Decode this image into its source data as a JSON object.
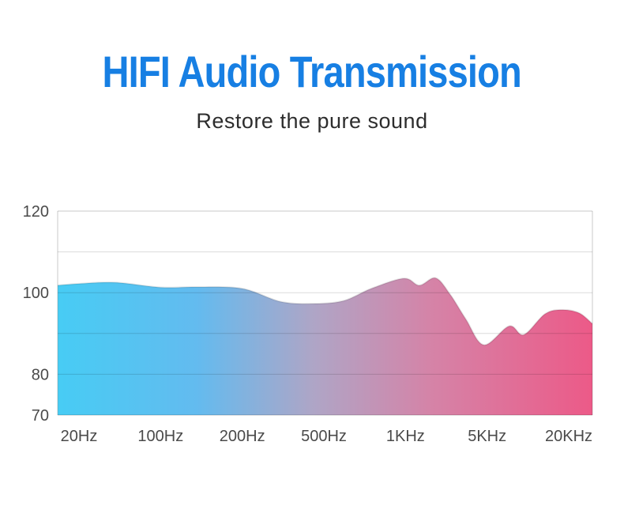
{
  "page": {
    "title": "HIFI Audio Transmission",
    "subtitle": "Restore the pure sound",
    "title_color": "#177fe3",
    "subtitle_color": "#2d2d2d",
    "background": "#ffffff"
  },
  "chart_data": {
    "type": "area",
    "title": "",
    "xlabel": "",
    "ylabel": "",
    "categories": [
      "20Hz",
      "100Hz",
      "200Hz",
      "500Hz",
      "1KHz",
      "5KHz",
      "20KHz"
    ],
    "y_tick_labels": [
      120,
      100,
      80,
      70
    ],
    "gridline_values": [
      110,
      100,
      90,
      80
    ],
    "ylim": [
      70,
      120
    ],
    "grid": true,
    "legend": "none",
    "series": [
      {
        "name": "frequency-response-db",
        "points": [
          {
            "x": -0.26,
            "db": 101.8
          },
          {
            "x": 0.0,
            "db": 102.2
          },
          {
            "x": 0.44,
            "db": 102.5
          },
          {
            "x": 1.0,
            "db": 101.3
          },
          {
            "x": 1.45,
            "db": 101.4
          },
          {
            "x": 2.0,
            "db": 101.0
          },
          {
            "x": 2.47,
            "db": 97.8
          },
          {
            "x": 2.86,
            "db": 97.3
          },
          {
            "x": 3.24,
            "db": 98.0
          },
          {
            "x": 3.58,
            "db": 101.0
          },
          {
            "x": 3.98,
            "db": 103.5
          },
          {
            "x": 4.17,
            "db": 101.8
          },
          {
            "x": 4.37,
            "db": 103.6
          },
          {
            "x": 4.55,
            "db": 99.5
          },
          {
            "x": 4.74,
            "db": 93.5
          },
          {
            "x": 4.96,
            "db": 87.2
          },
          {
            "x": 5.27,
            "db": 91.8
          },
          {
            "x": 5.45,
            "db": 89.7
          },
          {
            "x": 5.71,
            "db": 94.8
          },
          {
            "x": 5.92,
            "db": 95.8
          },
          {
            "x": 6.13,
            "db": 95.0
          },
          {
            "x": 6.29,
            "db": 92.4
          }
        ]
      }
    ],
    "gradient": [
      {
        "offset": 0.0,
        "color": "#47ccf4"
      },
      {
        "offset": 0.26,
        "color": "#63bbef"
      },
      {
        "offset": 0.48,
        "color": "#afa5c6"
      },
      {
        "offset": 0.7,
        "color": "#d583a7"
      },
      {
        "offset": 1.0,
        "color": "#ec5a88"
      }
    ],
    "axis_color": "#c9c9c9",
    "gridline_color": "#d6d6d6",
    "label_color": "#4a4a4a"
  }
}
